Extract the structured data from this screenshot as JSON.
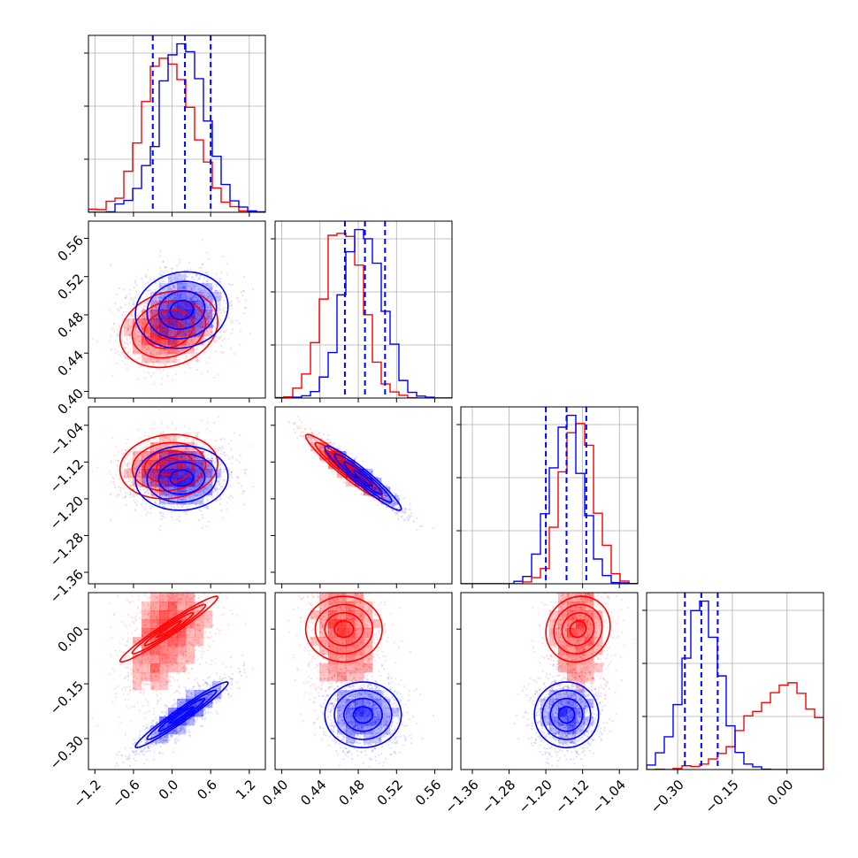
{
  "colors": {
    "series_a": "#ff0000",
    "series_b": "#0000ff",
    "grid": "#b0b0b0",
    "axis": "#000000"
  },
  "chart_data": {
    "type": "corner",
    "grid": true,
    "series": [
      {
        "name": "",
        "color": "#ff0000",
        "params": [
          {
            "mean": -0.05,
            "sd": 0.38
          },
          {
            "mean": 0.465,
            "sd": 0.02
          },
          {
            "mean": -1.13,
            "sd": 0.035
          },
          {
            "mean": 0.0,
            "sd": 0.045
          }
        ]
      },
      {
        "name": "",
        "color": "#0000ff",
        "params": [
          {
            "mean": 0.15,
            "sd": 0.36
          },
          {
            "mean": 0.485,
            "sd": 0.02
          },
          {
            "mean": -1.155,
            "sd": 0.035
          },
          {
            "mean": -0.235,
            "sd": 0.045
          }
        ]
      }
    ],
    "correlations": [
      {
        "pair": [
          1,
          0
        ],
        "series_a": 0.2,
        "series_b": 0.1
      },
      {
        "pair": [
          2,
          0
        ],
        "series_a": 0.1,
        "series_b": 0.05
      },
      {
        "pair": [
          2,
          1
        ],
        "series_a": -0.95,
        "series_b": -0.95
      },
      {
        "pair": [
          3,
          0
        ],
        "series_a": 0.97,
        "series_b": 0.97
      },
      {
        "pair": [
          3,
          1
        ],
        "series_a": 0.0,
        "series_b": 0.0
      },
      {
        "pair": [
          3,
          2
        ],
        "series_a": 0.1,
        "series_b": 0.0
      }
    ],
    "quantile_lines": {
      "color": "#0000ff",
      "values": [
        [
          -0.3,
          0.2,
          0.6
        ],
        [
          0.466,
          0.487,
          0.508
        ],
        [
          -1.2,
          -1.155,
          -1.112
        ],
        [
          -0.28,
          -0.235,
          -0.19
        ]
      ]
    },
    "axes": [
      {
        "range": [
          -1.3,
          1.45
        ],
        "ticks": [
          -1.2,
          -0.6,
          0.0,
          0.6,
          1.2
        ],
        "tick_labels": [
          "−1.2",
          "−0.6",
          "0.0",
          "0.6",
          "1.2"
        ]
      },
      {
        "range": [
          0.393,
          0.578
        ],
        "ticks": [
          0.4,
          0.44,
          0.48,
          0.52,
          0.56
        ],
        "tick_labels": [
          "0.40",
          "0.44",
          "0.48",
          "0.52",
          "0.56"
        ]
      },
      {
        "range": [
          -1.385,
          -1.0
        ],
        "ticks": [
          -1.36,
          -1.28,
          -1.2,
          -1.12,
          -1.04
        ],
        "tick_labels": [
          "−1.36",
          "−1.28",
          "−1.20",
          "−1.12",
          "−1.04"
        ]
      },
      {
        "range": [
          -0.385,
          0.1
        ],
        "ticks": [
          -0.3,
          -0.15,
          0.0
        ],
        "tick_labels": [
          "−0.30",
          "−0.15",
          "0.00"
        ]
      }
    ],
    "y_tick_axes": [
      {
        "row": 1,
        "param": 1,
        "ticks": [
          0.4,
          0.44,
          0.48,
          0.52,
          0.56
        ],
        "tick_labels": [
          "0.40",
          "0.44",
          "0.48",
          "0.52",
          "0.56"
        ]
      },
      {
        "row": 2,
        "param": 2,
        "ticks": [
          -1.36,
          -1.28,
          -1.2,
          -1.12,
          -1.04
        ],
        "tick_labels": [
          "−1.36",
          "−1.28",
          "−1.20",
          "−1.12",
          "−1.04"
        ]
      },
      {
        "row": 3,
        "param": 3,
        "ticks": [
          -0.3,
          -0.15,
          0.0
        ],
        "tick_labels": [
          "−0.30",
          "−0.15",
          "0.00"
        ]
      }
    ]
  }
}
